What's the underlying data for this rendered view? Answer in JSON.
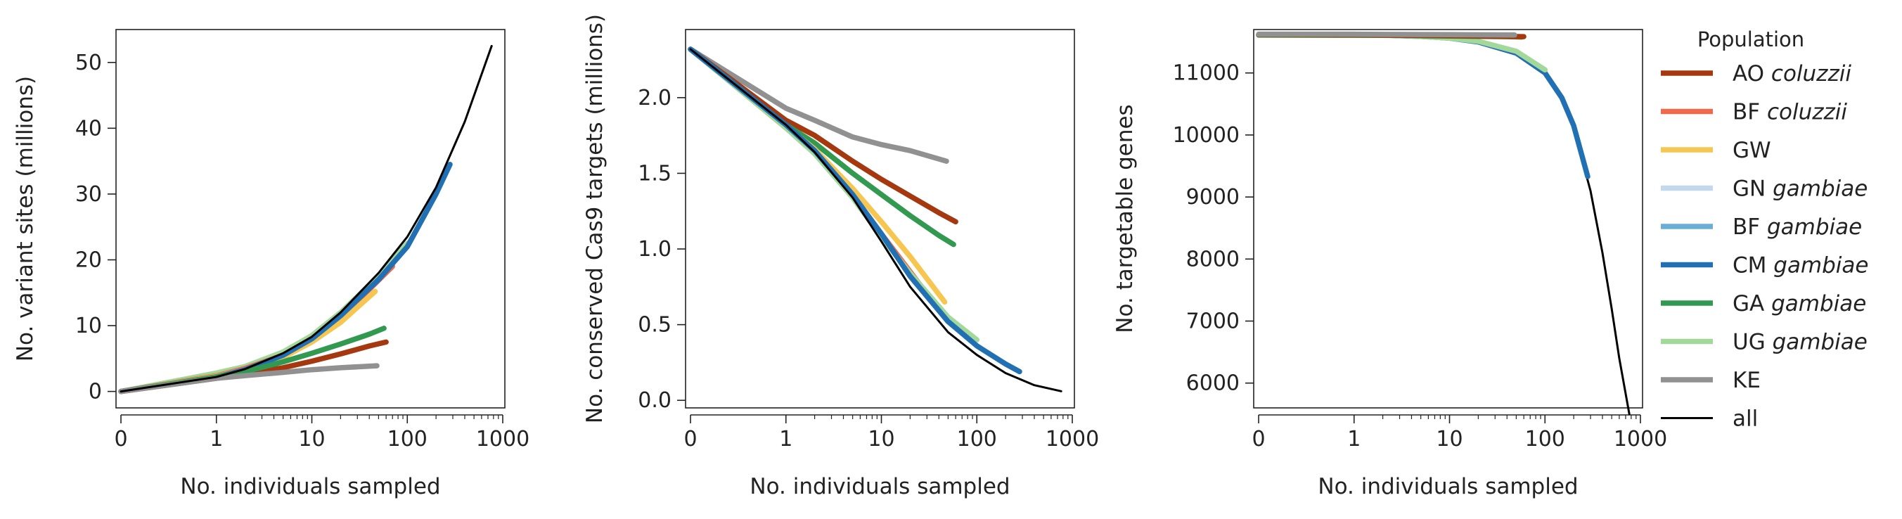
{
  "x_axis": {
    "label": "No. individuals sampled",
    "ticks": [
      0,
      1,
      10,
      100,
      1000
    ],
    "tick_labels": [
      "0",
      "1",
      "10",
      "100",
      "1000"
    ]
  },
  "legend": {
    "title": "Population",
    "placement": "right",
    "entries": [
      {
        "prefix": "AO",
        "species": "coluzzii",
        "color": "#a6380f"
      },
      {
        "prefix": "BF",
        "species": "coluzzii",
        "color": "#ef6a4c"
      },
      {
        "prefix": "GW",
        "species": "",
        "color": "#f7c651"
      },
      {
        "prefix": "GN",
        "species": "gambiae",
        "color": "#c2d8ec"
      },
      {
        "prefix": "BF",
        "species": "gambiae",
        "color": "#6aaed6"
      },
      {
        "prefix": "CM",
        "species": "gambiae",
        "color": "#2270b4"
      },
      {
        "prefix": "GA",
        "species": "gambiae",
        "color": "#319a50"
      },
      {
        "prefix": "UG",
        "species": "gambiae",
        "color": "#a2d99b"
      },
      {
        "prefix": "KE",
        "species": "",
        "color": "#919191"
      },
      {
        "prefix": "all",
        "species": "",
        "color": "#000000"
      }
    ]
  },
  "chart_data": [
    {
      "type": "line",
      "x_scale": "symlog",
      "xlabel": "No. individuals sampled",
      "ylabel": "No. variant sites (millions)",
      "ylim": [
        -2.5,
        55
      ],
      "yticks": [
        0,
        10,
        20,
        30,
        40,
        50
      ],
      "ytick_labels": [
        "0",
        "10",
        "20",
        "30",
        "40",
        "50"
      ],
      "series": [
        {
          "name": "UG gambiae",
          "x": [
            0,
            1,
            2,
            5,
            10,
            20,
            50,
            100
          ],
          "y": [
            0,
            2.8,
            3.8,
            6,
            8.5,
            12,
            17.5,
            22.5
          ]
        },
        {
          "name": "BF coluzzii",
          "x": [
            0,
            1,
            2,
            5,
            10,
            20,
            40,
            70
          ],
          "y": [
            0,
            2.4,
            3.5,
            5.5,
            8,
            11.5,
            15.5,
            19
          ]
        },
        {
          "name": "GW",
          "x": [
            0,
            1,
            2,
            5,
            10,
            20,
            46
          ],
          "y": [
            0,
            2.3,
            3.3,
            5.2,
            7.5,
            10.5,
            15.2
          ]
        },
        {
          "name": "CM gambiae",
          "x": [
            0,
            1,
            2,
            5,
            10,
            20,
            50,
            100,
            200,
            280
          ],
          "y": [
            0,
            2.2,
            3.3,
            5.5,
            8,
            11.5,
            17,
            22,
            30,
            34.5
          ]
        },
        {
          "name": "AO coluzzii",
          "x": [
            0,
            1,
            2,
            5,
            10,
            20,
            40,
            60
          ],
          "y": [
            0,
            2,
            2.6,
            3.6,
            4.6,
            5.7,
            6.9,
            7.5
          ]
        },
        {
          "name": "GA gambiae",
          "x": [
            0,
            1,
            2,
            5,
            10,
            20,
            40,
            57
          ],
          "y": [
            0,
            2.2,
            3,
            4.5,
            5.8,
            7.2,
            8.7,
            9.6
          ]
        },
        {
          "name": "KE",
          "x": [
            0,
            1,
            2,
            5,
            10,
            20,
            48
          ],
          "y": [
            0,
            2,
            2.4,
            2.9,
            3.3,
            3.6,
            3.9
          ]
        },
        {
          "name": "all",
          "x": [
            0,
            1,
            2,
            5,
            10,
            20,
            50,
            100,
            200,
            400,
            765
          ],
          "y": [
            0,
            2.2,
            3.4,
            5.8,
            8.3,
            12,
            18,
            23.5,
            31,
            41,
            52.5
          ]
        }
      ]
    },
    {
      "type": "line",
      "x_scale": "symlog",
      "xlabel": "No. individuals sampled",
      "ylabel": "No. conserved Cas9 targets (millions)",
      "ylim": [
        -0.05,
        2.45
      ],
      "yticks": [
        0,
        0.5,
        1.0,
        1.5,
        2.0
      ],
      "ytick_labels": [
        "0.0",
        "0.5",
        "1.0",
        "1.5",
        "2.0"
      ],
      "series": [
        {
          "name": "KE",
          "x": [
            0,
            1,
            2,
            5,
            10,
            20,
            48
          ],
          "y": [
            2.32,
            1.93,
            1.85,
            1.74,
            1.69,
            1.65,
            1.58
          ]
        },
        {
          "name": "AO coluzzii",
          "x": [
            0,
            1,
            2,
            5,
            10,
            20,
            40,
            60
          ],
          "y": [
            2.32,
            1.85,
            1.75,
            1.58,
            1.46,
            1.35,
            1.24,
            1.18
          ]
        },
        {
          "name": "GA gambiae",
          "x": [
            0,
            1,
            2,
            5,
            10,
            20,
            40,
            57
          ],
          "y": [
            2.32,
            1.82,
            1.7,
            1.5,
            1.36,
            1.22,
            1.09,
            1.03
          ]
        },
        {
          "name": "GW",
          "x": [
            0,
            1,
            2,
            5,
            10,
            20,
            46
          ],
          "y": [
            2.32,
            1.81,
            1.66,
            1.4,
            1.18,
            0.95,
            0.65
          ]
        },
        {
          "name": "BF coluzzii",
          "x": [
            0,
            1,
            2,
            5,
            10,
            20,
            40,
            70
          ],
          "y": [
            2.32,
            1.8,
            1.64,
            1.35,
            1.1,
            0.85,
            0.6,
            0.45
          ]
        },
        {
          "name": "UG gambiae",
          "x": [
            0,
            1,
            2,
            5,
            10,
            20,
            50,
            100
          ],
          "y": [
            2.32,
            1.8,
            1.63,
            1.34,
            1.08,
            0.84,
            0.55,
            0.4
          ]
        },
        {
          "name": "CM gambiae",
          "x": [
            0,
            1,
            2,
            5,
            10,
            20,
            50,
            100,
            200,
            280
          ],
          "y": [
            2.32,
            1.82,
            1.65,
            1.36,
            1.1,
            0.82,
            0.52,
            0.36,
            0.24,
            0.19
          ]
        },
        {
          "name": "all",
          "x": [
            0,
            1,
            2,
            5,
            10,
            20,
            50,
            100,
            200,
            400,
            765
          ],
          "y": [
            2.32,
            1.82,
            1.64,
            1.34,
            1.05,
            0.75,
            0.45,
            0.3,
            0.18,
            0.1,
            0.06
          ]
        }
      ]
    },
    {
      "type": "line",
      "x_scale": "symlog",
      "xlabel": "No. individuals sampled",
      "ylabel": "No. targetable genes",
      "ylim": [
        5600,
        11700
      ],
      "yticks": [
        6000,
        7000,
        8000,
        9000,
        10000,
        11000
      ],
      "ytick_labels": [
        "6000",
        "7000",
        "8000",
        "9000",
        "10000",
        "11000"
      ],
      "series": [
        {
          "name": "all",
          "x": [
            0,
            1,
            2,
            5,
            10,
            20,
            50,
            100,
            150,
            200,
            300,
            400,
            500,
            600,
            765
          ],
          "y": [
            11620,
            11615,
            11610,
            11590,
            11560,
            11510,
            11340,
            11000,
            10600,
            10100,
            9100,
            8100,
            7200,
            6400,
            5500
          ]
        },
        {
          "name": "CM gambiae",
          "x": [
            0,
            1,
            2,
            5,
            10,
            20,
            50,
            100,
            150,
            200,
            280
          ],
          "y": [
            11620,
            11615,
            11610,
            11590,
            11560,
            11500,
            11320,
            11000,
            10600,
            10150,
            9330
          ]
        },
        {
          "name": "UG gambiae",
          "x": [
            0,
            1,
            2,
            5,
            10,
            20,
            50,
            100
          ],
          "y": [
            11620,
            11615,
            11610,
            11590,
            11560,
            11510,
            11350,
            11050
          ]
        },
        {
          "name": "GA gambiae",
          "x": [
            0,
            1,
            2,
            5,
            10,
            20,
            40,
            57
          ],
          "y": [
            11610,
            11608,
            11606,
            11600,
            11595,
            11590,
            11585,
            11580
          ]
        },
        {
          "name": "AO coluzzii",
          "x": [
            0,
            1,
            2,
            5,
            10,
            20,
            40,
            60
          ],
          "y": [
            11620,
            11615,
            11610,
            11605,
            11600,
            11595,
            11590,
            11585
          ]
        },
        {
          "name": "KE",
          "x": [
            0,
            1,
            2,
            5,
            10,
            20,
            48
          ],
          "y": [
            11625,
            11625,
            11622,
            11620,
            11618,
            11615,
            11612
          ]
        }
      ]
    }
  ]
}
